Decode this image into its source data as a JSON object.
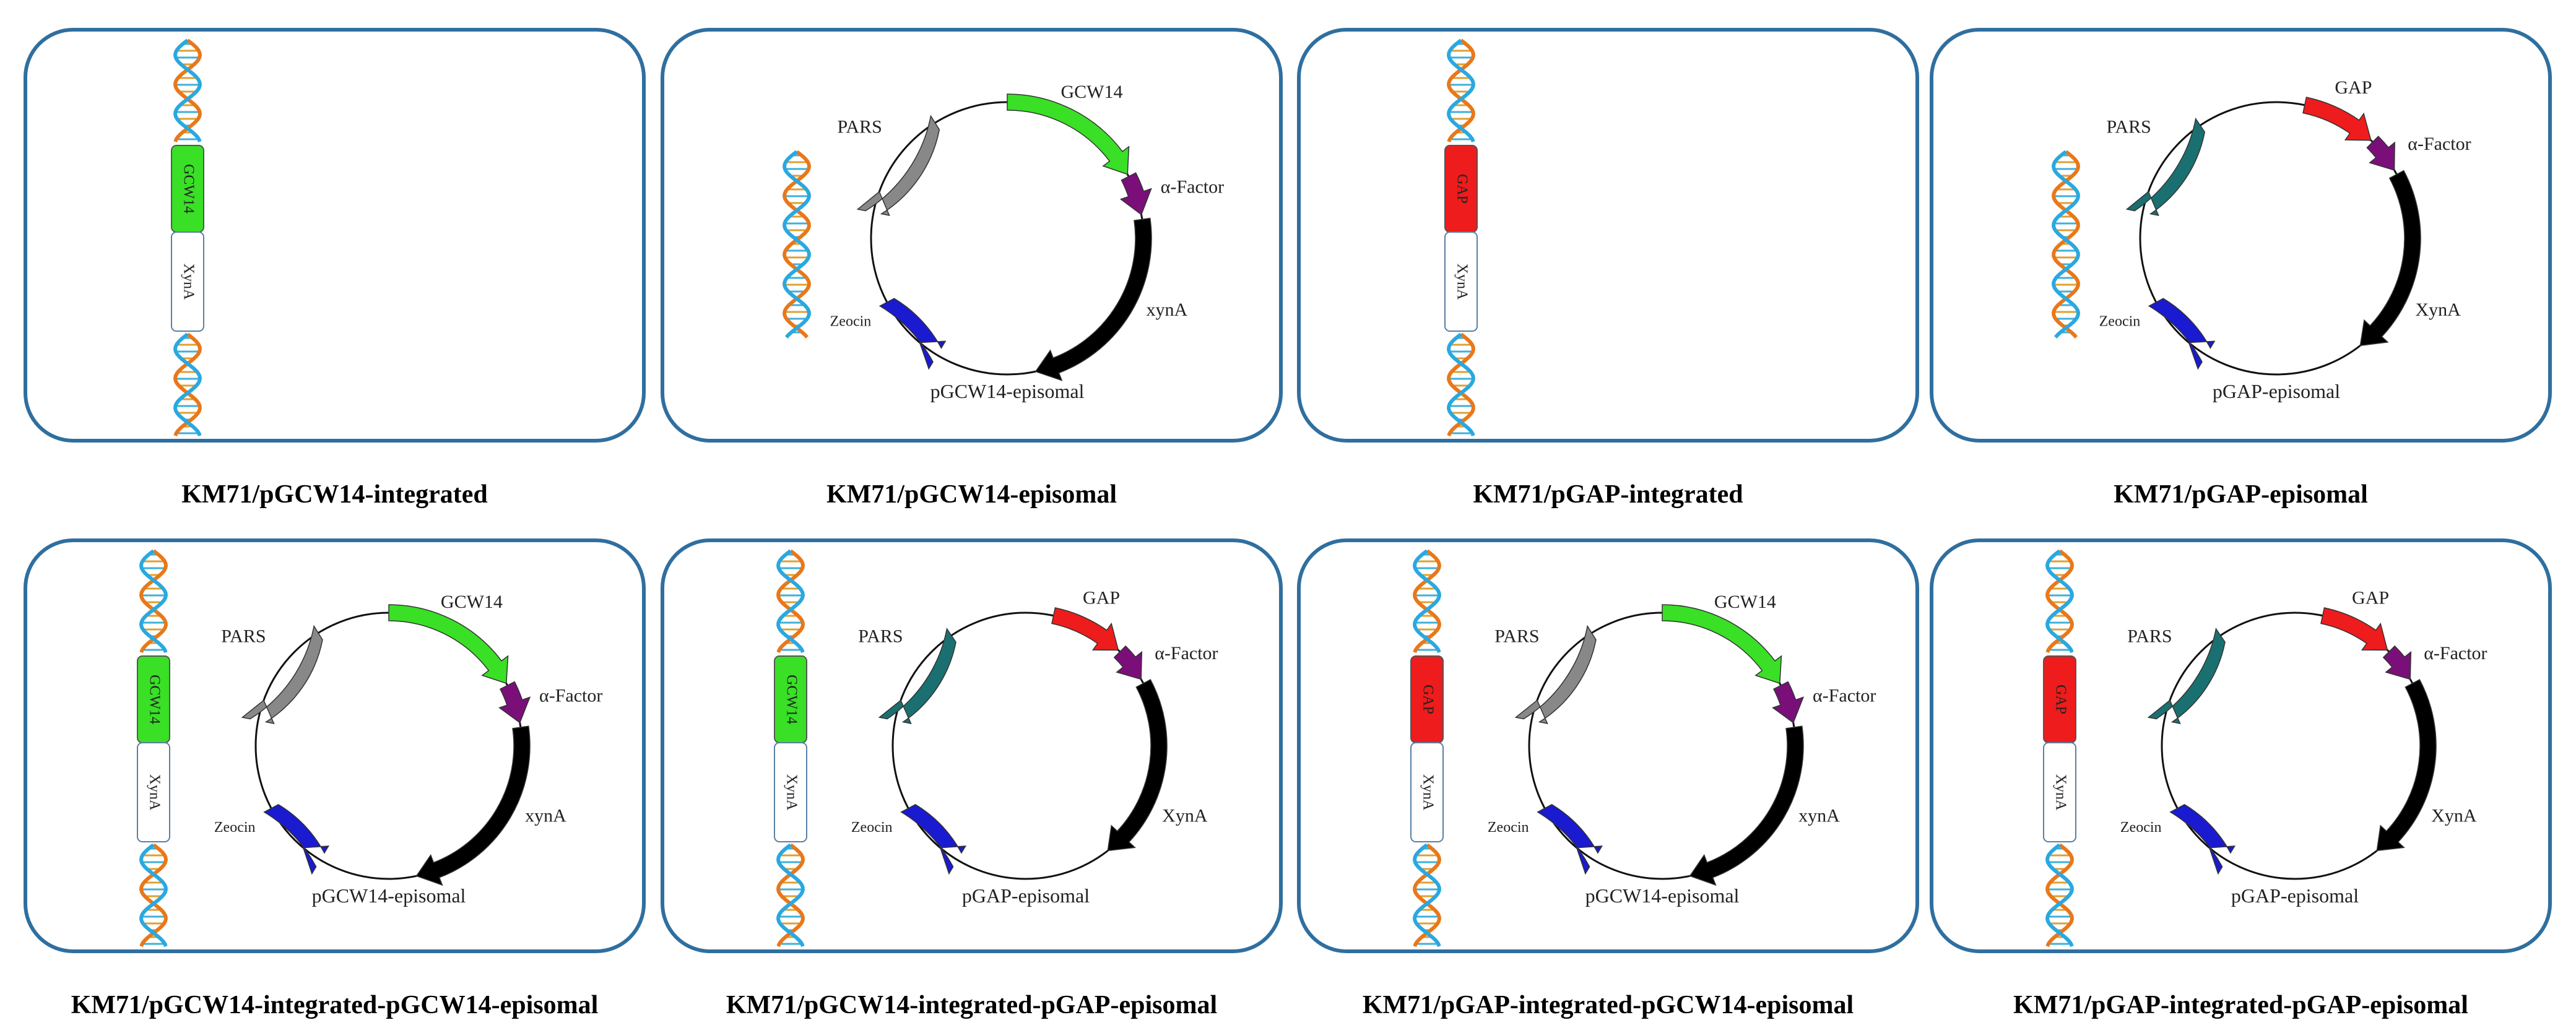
{
  "colors": {
    "border": "#2f6f9f",
    "gcw14": "#39e026",
    "gap": "#ee1c1c",
    "alpha_factor": "#7a0f7a",
    "xyna": "#000000",
    "zeocin": "#1a1ad0",
    "pars_gray": "#888888",
    "pars_teal": "#1a7070",
    "dna_orange": "#e8781a",
    "dna_blue": "#2aa8e0"
  },
  "icons": [
    "dna-helix-icon",
    "plasmid-map-icon",
    "arrow-feature-icon"
  ],
  "labels": {
    "promoter_gcw14": "GCW14",
    "promoter_gap": "GAP",
    "signal": "α-Factor",
    "gene_lower": "xynA",
    "gene_upper": "XynA",
    "selection": "Zeocin",
    "origin": "PARS",
    "cassette_gene": "XynA",
    "plasmid_gcw14": "pGCW14-episomal",
    "plasmid_gap": "pGAP-episomal"
  },
  "panels": [
    {
      "caption": "KM71/pGCW14-integrated",
      "integrated": "gcw14",
      "episomal": null
    },
    {
      "caption": "KM71/pGCW14-episomal",
      "integrated": null,
      "episomal": "gcw14"
    },
    {
      "caption": "KM71/pGAP-integrated",
      "integrated": "gap",
      "episomal": null
    },
    {
      "caption": "KM71/pGAP-episomal",
      "integrated": null,
      "episomal": "gap"
    },
    {
      "caption": "KM71/pGCW14-integrated-pGCW14-episomal",
      "integrated": "gcw14",
      "episomal": "gcw14"
    },
    {
      "caption": "KM71/pGCW14-integrated-pGAP-episomal",
      "integrated": "gcw14",
      "episomal": "gap"
    },
    {
      "caption": "KM71/pGAP-integrated-pGCW14-episomal",
      "integrated": "gap",
      "episomal": "gcw14"
    },
    {
      "caption": "KM71/pGAP-integrated-pGAP-episomal",
      "integrated": "gap",
      "episomal": "gap"
    }
  ]
}
